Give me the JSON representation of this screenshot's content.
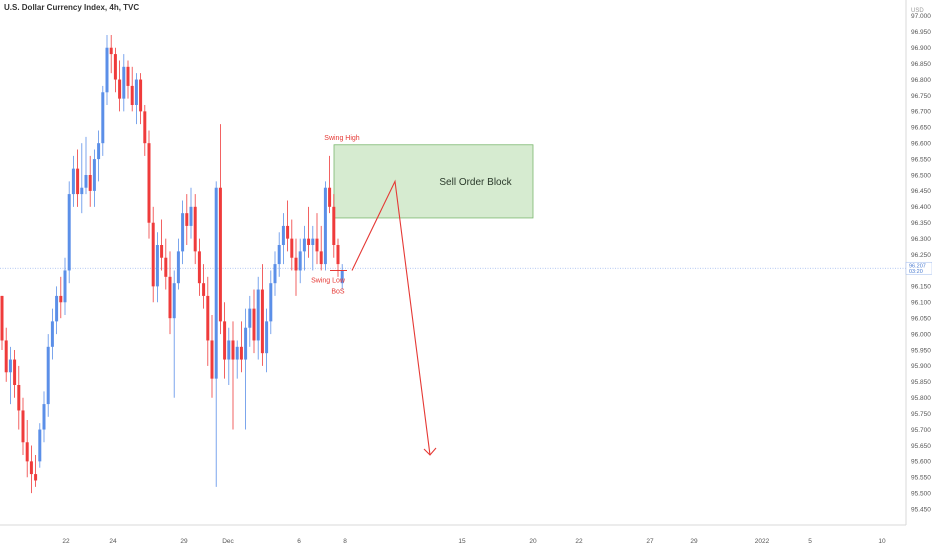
{
  "header": {
    "title": "U.S. Dollar Currency Index, 4h, TVC"
  },
  "chart_data": {
    "type": "candlestick",
    "title": "U.S. Dollar Currency Index, 4h, TVC",
    "currency": "USD",
    "ylim": [
      95.4,
      97.05
    ],
    "y_ticks": [
      "95.450",
      "95.500",
      "95.550",
      "95.600",
      "95.650",
      "95.700",
      "95.750",
      "95.800",
      "95.850",
      "95.900",
      "95.950",
      "96.000",
      "96.050",
      "96.100",
      "96.150",
      "96.200",
      "96.250",
      "96.300",
      "96.350",
      "96.400",
      "96.450",
      "96.500",
      "96.550",
      "96.600",
      "96.650",
      "96.700",
      "96.750",
      "96.800",
      "96.850",
      "96.900",
      "96.950",
      "97.000"
    ],
    "x_ticks": [
      "22",
      "24",
      "29",
      "Dec",
      "6",
      "8",
      "15",
      "20",
      "22",
      "27",
      "29",
      "2022",
      "5",
      "10"
    ],
    "last_price": "96.207",
    "last_price_sub": "03:20",
    "colors": {
      "up": "#5b8fe8",
      "down": "#ef3b3b",
      "zone_fill": "#cfe8c8",
      "zone_border": "#7bb86f",
      "annotation": "#e53935"
    },
    "candles": [
      [
        96.12,
        96.12,
        95.95,
        95.98
      ],
      [
        95.98,
        96.02,
        95.85,
        95.88
      ],
      [
        95.88,
        95.96,
        95.78,
        95.92
      ],
      [
        95.92,
        95.95,
        95.8,
        95.84
      ],
      [
        95.84,
        95.9,
        95.7,
        95.76
      ],
      [
        95.76,
        95.8,
        95.62,
        95.66
      ],
      [
        95.66,
        95.73,
        95.55,
        95.6
      ],
      [
        95.6,
        95.65,
        95.5,
        95.56
      ],
      [
        95.56,
        95.62,
        95.52,
        95.54
      ],
      [
        95.6,
        95.72,
        95.58,
        95.7
      ],
      [
        95.7,
        95.82,
        95.66,
        95.78
      ],
      [
        95.78,
        96.0,
        95.74,
        95.96
      ],
      [
        95.96,
        96.08,
        95.92,
        96.04
      ],
      [
        96.04,
        96.15,
        96.0,
        96.12
      ],
      [
        96.12,
        96.18,
        96.05,
        96.1
      ],
      [
        96.1,
        96.24,
        96.06,
        96.2
      ],
      [
        96.2,
        96.48,
        96.16,
        96.44
      ],
      [
        96.44,
        96.56,
        96.4,
        96.52
      ],
      [
        96.52,
        96.58,
        96.4,
        96.44
      ],
      [
        96.44,
        96.6,
        96.38,
        96.46
      ],
      [
        96.46,
        96.62,
        96.44,
        96.5
      ],
      [
        96.5,
        96.56,
        96.4,
        96.45
      ],
      [
        96.45,
        96.58,
        96.4,
        96.55
      ],
      [
        96.55,
        96.64,
        96.48,
        96.6
      ],
      [
        96.6,
        96.78,
        96.56,
        96.76
      ],
      [
        96.76,
        96.94,
        96.72,
        96.9
      ],
      [
        96.9,
        96.94,
        96.82,
        96.88
      ],
      [
        96.88,
        96.9,
        96.76,
        96.8
      ],
      [
        96.8,
        96.86,
        96.7,
        96.74
      ],
      [
        96.74,
        96.88,
        96.7,
        96.84
      ],
      [
        96.84,
        96.86,
        96.74,
        96.78
      ],
      [
        96.78,
        96.84,
        96.7,
        96.72
      ],
      [
        96.72,
        96.82,
        96.66,
        96.8
      ],
      [
        96.8,
        96.82,
        96.66,
        96.7
      ],
      [
        96.7,
        96.72,
        96.56,
        96.6
      ],
      [
        96.6,
        96.64,
        96.3,
        96.35
      ],
      [
        96.35,
        96.4,
        96.1,
        96.15
      ],
      [
        96.15,
        96.32,
        96.1,
        96.28
      ],
      [
        96.28,
        96.36,
        96.2,
        96.24
      ],
      [
        96.24,
        96.3,
        96.14,
        96.18
      ],
      [
        96.18,
        96.26,
        96.0,
        96.05
      ],
      [
        96.05,
        96.2,
        95.8,
        96.16
      ],
      [
        96.16,
        96.3,
        96.14,
        96.26
      ],
      [
        96.26,
        96.42,
        96.22,
        96.38
      ],
      [
        96.38,
        96.44,
        96.28,
        96.34
      ],
      [
        96.34,
        96.46,
        96.3,
        96.4
      ],
      [
        96.4,
        96.44,
        96.22,
        96.26
      ],
      [
        96.26,
        96.3,
        96.12,
        96.16
      ],
      [
        96.16,
        96.22,
        96.08,
        96.12
      ],
      [
        96.12,
        96.18,
        95.9,
        95.98
      ],
      [
        95.98,
        96.06,
        95.8,
        95.86
      ],
      [
        95.86,
        96.48,
        95.52,
        96.46
      ],
      [
        96.46,
        96.66,
        96.0,
        96.04
      ],
      [
        96.04,
        96.1,
        95.86,
        95.92
      ],
      [
        95.92,
        96.02,
        95.84,
        95.98
      ],
      [
        95.98,
        96.04,
        95.7,
        95.92
      ],
      [
        95.92,
        95.98,
        95.86,
        95.96
      ],
      [
        95.96,
        96.04,
        95.88,
        95.92
      ],
      [
        95.92,
        96.08,
        95.7,
        96.02
      ],
      [
        96.02,
        96.12,
        95.96,
        96.08
      ],
      [
        96.08,
        96.14,
        95.94,
        95.98
      ],
      [
        95.98,
        96.18,
        95.92,
        96.14
      ],
      [
        96.14,
        96.22,
        95.9,
        95.94
      ],
      [
        95.94,
        96.08,
        95.88,
        96.04
      ],
      [
        96.04,
        96.2,
        96.0,
        96.16
      ],
      [
        96.16,
        96.26,
        96.12,
        96.22
      ],
      [
        96.22,
        96.32,
        96.18,
        96.28
      ],
      [
        96.28,
        96.38,
        96.22,
        96.34
      ],
      [
        96.34,
        96.42,
        96.26,
        96.3
      ],
      [
        96.3,
        96.36,
        96.2,
        96.24
      ],
      [
        96.24,
        96.3,
        96.12,
        96.2
      ],
      [
        96.2,
        96.3,
        96.16,
        96.26
      ],
      [
        96.26,
        96.34,
        96.2,
        96.3
      ],
      [
        96.3,
        96.4,
        96.24,
        96.28
      ],
      [
        96.28,
        96.34,
        96.2,
        96.3
      ],
      [
        96.3,
        96.38,
        96.22,
        96.26
      ],
      [
        96.26,
        96.34,
        96.2,
        96.22
      ],
      [
        96.22,
        96.48,
        96.2,
        96.46
      ],
      [
        96.46,
        96.56,
        96.38,
        96.4
      ],
      [
        96.4,
        96.44,
        96.24,
        96.28
      ],
      [
        96.28,
        96.3,
        96.18,
        96.22
      ],
      [
        96.16,
        96.22,
        96.14,
        96.2
      ]
    ],
    "zone": {
      "label": "Sell Order Block",
      "y_top": 96.595,
      "y_bottom": 96.365
    },
    "annotations": {
      "swing_high": "Swing High",
      "swing_low": "Swing Low",
      "bos": "BoS",
      "path": [
        [
          96.2,
          0
        ],
        [
          96.48,
          1
        ],
        [
          95.62,
          2
        ]
      ]
    }
  }
}
